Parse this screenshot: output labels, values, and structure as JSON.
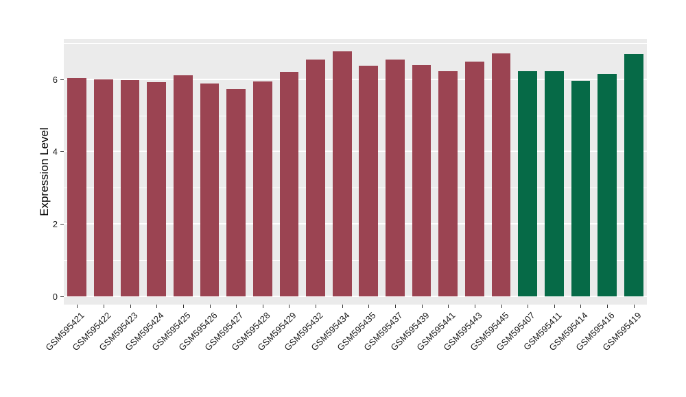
{
  "chart_data": {
    "type": "bar",
    "title": "",
    "xlabel": "",
    "ylabel": "Expression Level",
    "ylim": [
      0,
      7.11
    ],
    "yticks": [
      0,
      2,
      4,
      6
    ],
    "minor_gridlines": [
      1,
      3,
      5,
      7
    ],
    "grid": true,
    "legend_position": "none",
    "panel_background": "#EBEBEB",
    "gridline_color": "#FFFFFF",
    "bar_width_fraction": 0.72,
    "categories": [
      "GSM595421",
      "GSM595422",
      "GSM595423",
      "GSM595424",
      "GSM595425",
      "GSM595426",
      "GSM595427",
      "GSM595428",
      "GSM595429",
      "GSM595432",
      "GSM595434",
      "GSM595435",
      "GSM595437",
      "GSM595439",
      "GSM595441",
      "GSM595443",
      "GSM595445",
      "GSM595407",
      "GSM595411",
      "GSM595414",
      "GSM595416",
      "GSM595419"
    ],
    "values": [
      6.03,
      6.0,
      5.97,
      5.92,
      6.1,
      5.88,
      5.73,
      5.93,
      6.2,
      6.55,
      6.77,
      6.38,
      6.55,
      6.4,
      6.22,
      6.48,
      6.72,
      6.22,
      6.22,
      5.95,
      6.14,
      6.7
    ],
    "bar_groups": [
      "group1",
      "group1",
      "group1",
      "group1",
      "group1",
      "group1",
      "group1",
      "group1",
      "group1",
      "group1",
      "group1",
      "group1",
      "group1",
      "group1",
      "group1",
      "group1",
      "group1",
      "group2",
      "group2",
      "group2",
      "group2",
      "group2"
    ],
    "palette": {
      "group1": "#9B4452",
      "group2": "#066A47"
    }
  }
}
